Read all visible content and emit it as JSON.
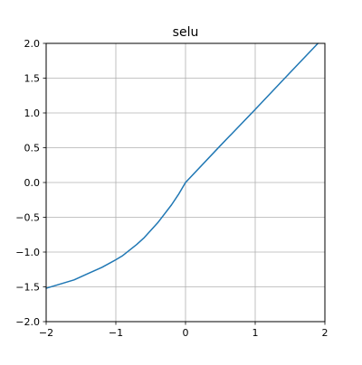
{
  "chart_data": {
    "type": "line",
    "title": "selu",
    "xlabel": "",
    "ylabel": "",
    "xlim": [
      -2,
      2
    ],
    "ylim": [
      -2,
      2
    ],
    "xticks": [
      -2,
      -1,
      0,
      1,
      2
    ],
    "yticks": [
      -2.0,
      -1.5,
      -1.0,
      -0.5,
      0.0,
      0.5,
      1.0,
      1.5,
      2.0
    ],
    "xtick_labels": [
      "−2",
      "−1",
      "0",
      "1",
      "2"
    ],
    "ytick_labels": [
      "−2.0",
      "−1.5",
      "−1.0",
      "−0.5",
      "0.0",
      "0.5",
      "1.0",
      "1.5",
      "2.0"
    ],
    "grid": true,
    "series": [
      {
        "color": "#1f77b4",
        "x": [
          -2.0,
          -1.8,
          -1.6,
          -1.4,
          -1.2,
          -1.0,
          -0.9,
          -0.8,
          -0.7,
          -0.6,
          -0.5,
          -0.4,
          -0.3,
          -0.2,
          -0.1,
          0.0,
          0.5,
          1.0,
          1.5,
          1.9
        ],
        "y": [
          -1.52,
          -1.46,
          -1.4,
          -1.31,
          -1.22,
          -1.11,
          -1.05,
          -0.97,
          -0.89,
          -0.8,
          -0.69,
          -0.58,
          -0.45,
          -0.32,
          -0.17,
          0.0,
          0.53,
          1.05,
          1.58,
          2.0
        ]
      }
    ]
  }
}
